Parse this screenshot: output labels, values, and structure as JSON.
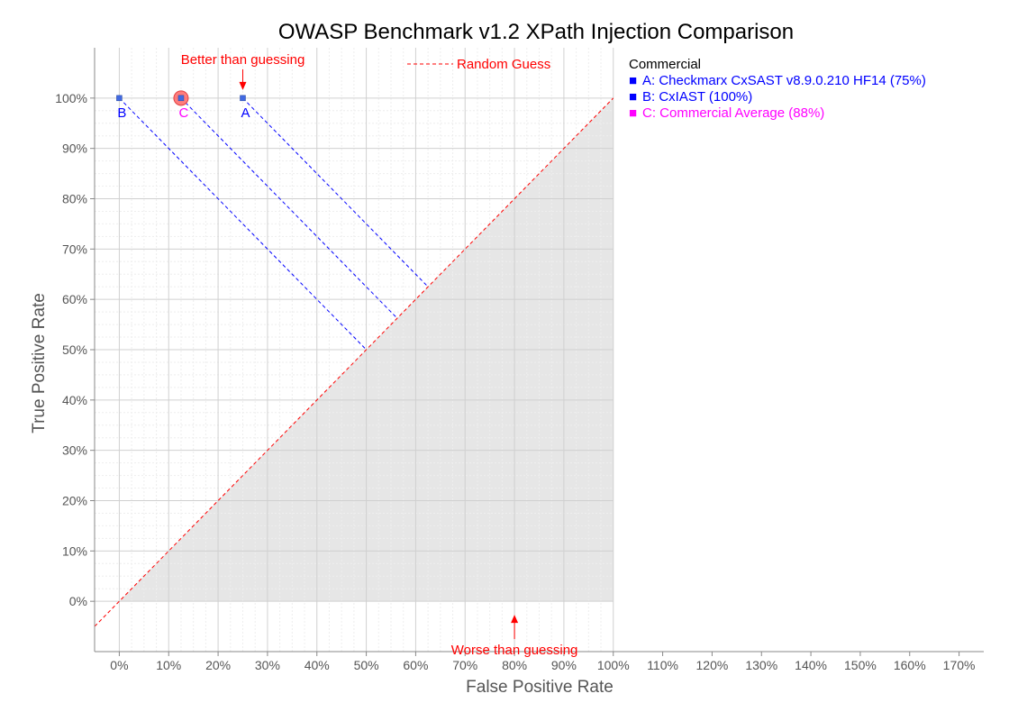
{
  "chart_data": {
    "type": "scatter",
    "title": "OWASP Benchmark v1.2 XPath Injection Comparison",
    "xlabel": "False Positive Rate",
    "ylabel": "True Positive Rate",
    "xlim": [
      -5,
      175
    ],
    "ylim": [
      -10,
      110
    ],
    "x_ticks": [
      0,
      10,
      20,
      30,
      40,
      50,
      60,
      70,
      80,
      90,
      100,
      110,
      120,
      130,
      140,
      150,
      160,
      170
    ],
    "x_tick_labels": [
      "0%",
      "10%",
      "20%",
      "30%",
      "40%",
      "50%",
      "60%",
      "70%",
      "80%",
      "90%",
      "100%",
      "110%",
      "120%",
      "130%",
      "140%",
      "150%",
      "160%",
      "170%"
    ],
    "y_ticks": [
      0,
      10,
      20,
      30,
      40,
      50,
      60,
      70,
      80,
      90,
      100
    ],
    "y_tick_labels": [
      "0%",
      "10%",
      "20%",
      "30%",
      "40%",
      "50%",
      "60%",
      "70%",
      "80%",
      "90%",
      "100%"
    ],
    "grid": true,
    "random_guess_line": {
      "label": "Random Guess",
      "color": "#ff0000"
    },
    "annotations": {
      "better": {
        "text": "Better than guessing",
        "x": 25,
        "y": 105
      },
      "worse": {
        "text": "Worse than guessing",
        "x": 80,
        "y": -5
      }
    },
    "legend": {
      "title": "Commercial",
      "entries": [
        {
          "marker": "■",
          "text": "A: Checkmarx CxSAST v8.9.0.210 HF14 (75%)",
          "color": "#0000ff"
        },
        {
          "marker": "■",
          "text": "B: CxIAST (100%)",
          "color": "#0000ff"
        },
        {
          "marker": "■",
          "text": "C: Commercial Average (88%)",
          "color": "#ff00ff"
        }
      ]
    },
    "points": [
      {
        "label": "A",
        "x": 25,
        "y": 100,
        "color": "#0000ff",
        "marker": "square"
      },
      {
        "label": "B",
        "x": 0,
        "y": 100,
        "color": "#0000ff",
        "marker": "square"
      },
      {
        "label": "C",
        "x": 12.5,
        "y": 100,
        "color": "#ff00ff",
        "marker": "circle"
      }
    ],
    "colors": {
      "shade": "#e6e6e6",
      "grid": "#d0d0d0",
      "grid_minor": "#eeeeee",
      "point_fill": "#4169e1",
      "highlight": "#ff6666"
    }
  }
}
